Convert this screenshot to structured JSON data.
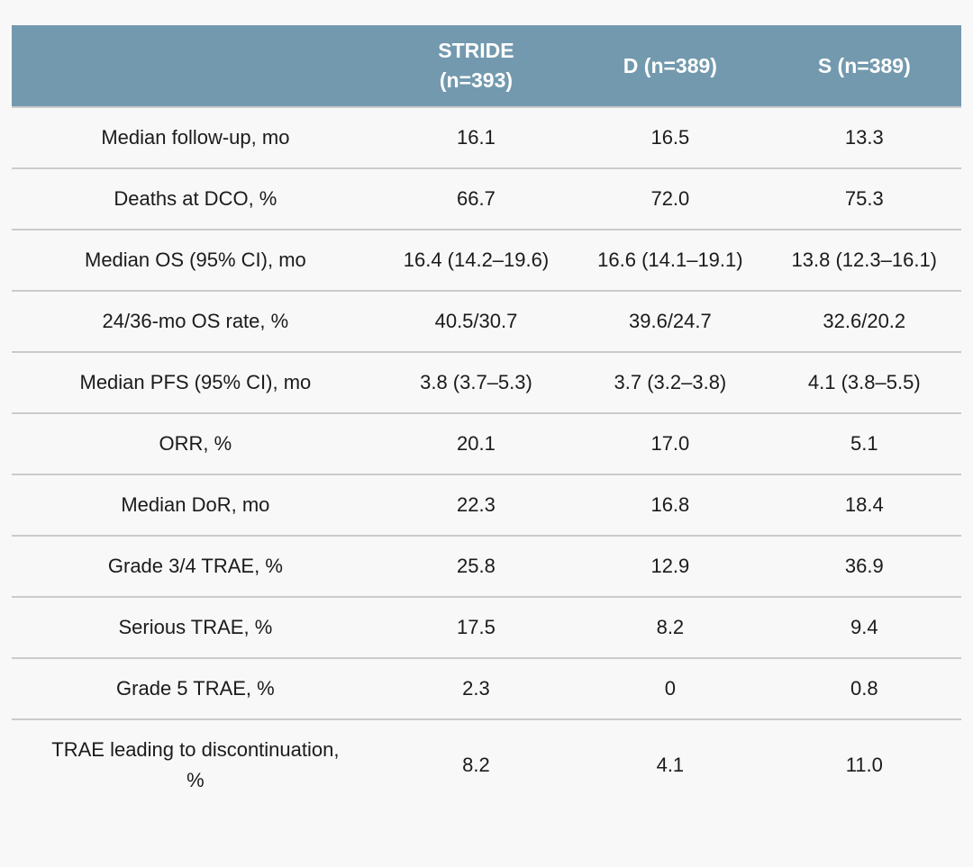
{
  "theme": {
    "header_bg": "#7399ae",
    "header_text": "#ffffff",
    "page_bg": "#f8f8f9",
    "body_text": "#1b1b1b",
    "divider": "#cbcbcb"
  },
  "chart_data": {
    "type": "table",
    "columns": [
      "",
      "STRIDE (n=393)",
      "D (n=389)",
      "S (n=389)"
    ],
    "rows": [
      {
        "label": "Median follow-up, mo",
        "values": [
          "16.1",
          "16.5",
          "13.3"
        ]
      },
      {
        "label": "Deaths at DCO, %",
        "values": [
          "66.7",
          "72.0",
          "75.3"
        ]
      },
      {
        "label": "Median OS (95% CI), mo",
        "values": [
          "16.4 (14.2–19.6)",
          "16.6 (14.1–19.1)",
          "13.8 (12.3–16.1)"
        ]
      },
      {
        "label": "24/36-mo OS rate, %",
        "values": [
          "40.5/30.7",
          "39.6/24.7",
          "32.6/20.2"
        ]
      },
      {
        "label": "Median PFS (95% CI), mo",
        "values": [
          "3.8 (3.7–5.3)",
          "3.7 (3.2–3.8)",
          "4.1 (3.8–5.5)"
        ]
      },
      {
        "label": "ORR, %",
        "values": [
          "20.1",
          "17.0",
          "5.1"
        ]
      },
      {
        "label": "Median DoR, mo",
        "values": [
          "22.3",
          "16.8",
          "18.4"
        ]
      },
      {
        "label": "Grade 3/4 TRAE, %",
        "values": [
          "25.8",
          "12.9",
          "36.9"
        ]
      },
      {
        "label": "Serious TRAE, %",
        "values": [
          "17.5",
          "8.2",
          "9.4"
        ]
      },
      {
        "label": "Grade 5 TRAE, %",
        "values": [
          "2.3",
          "0",
          "0.8"
        ]
      },
      {
        "label": "TRAE leading to discontinuation, %",
        "values": [
          "8.2",
          "4.1",
          "11.0"
        ]
      }
    ]
  }
}
